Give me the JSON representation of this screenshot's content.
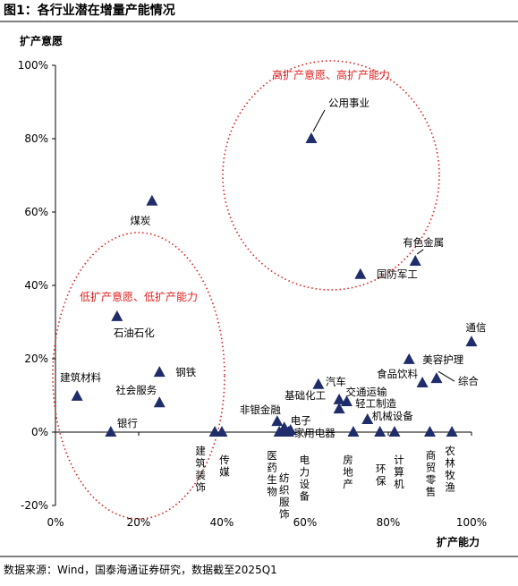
{
  "chart_data": {
    "type": "scatter",
    "title": "图1：各行业潜在增量产能情况",
    "y_label": "扩产意愿",
    "x_label": "扩产能力",
    "source": "数据来源：Wind，国泰海通证券研究，数据截至2025Q1",
    "annotations": [
      "高扩产意愿、高扩产能力",
      "低扩产意愿、低扩产能力"
    ],
    "annotation_color": "#e02020",
    "color": "#1f2d6b",
    "labels": [
      "公用事业",
      "煤炭",
      "有色金属",
      "国防军工",
      "石油石化",
      "通信",
      "美容护理",
      "钢铁",
      "汽车",
      "综合",
      "食品饮料",
      "建筑材料",
      "社会服务",
      "基础化工",
      "交通运输",
      "轻工制造",
      "机械设备",
      "非银金融",
      "电子",
      "银行",
      "建筑装饰",
      "传媒",
      "医药生物",
      "纺织服饰",
      "电力设备",
      "家用电器",
      "房地产",
      "环保",
      "计算机",
      "商贸零售",
      "农林牧渔"
    ],
    "x": [
      61.5,
      23.2,
      86.5,
      73.3,
      14.8,
      100,
      85,
      25,
      63.2,
      91.6,
      88.2,
      5.2,
      25,
      68.2,
      70,
      68.2,
      75,
      53.3,
      55,
      13.3,
      38.3,
      40,
      53.8,
      55,
      56,
      56.5,
      71.6,
      78,
      81.5,
      90,
      95.3
    ],
    "values": [
      80,
      63,
      46.6,
      43,
      31.5,
      24.6,
      19.8,
      16.3,
      13,
      14.6,
      13.4,
      9.8,
      8,
      8.8,
      8.3,
      6.3,
      3.4,
      2.9,
      1.2,
      0,
      0,
      0,
      0,
      0,
      0,
      0.5,
      0,
      0,
      0,
      0,
      0
    ],
    "xlim": [
      0,
      100
    ],
    "ylim": [
      -20,
      100
    ],
    "xticks": [
      {
        "value": 0,
        "label": "0%"
      },
      {
        "value": 20,
        "label": "20%"
      },
      {
        "value": 40,
        "label": "40%"
      },
      {
        "value": 60,
        "label": "60%"
      },
      {
        "value": 80,
        "label": "80%"
      },
      {
        "value": 100,
        "label": "100%"
      }
    ],
    "yticks": [
      {
        "value": -20,
        "label": "-20%"
      },
      {
        "value": 0,
        "label": "0%"
      },
      {
        "value": 20,
        "label": "20%"
      },
      {
        "value": 40,
        "label": "40%"
      },
      {
        "value": 60,
        "label": "60%"
      },
      {
        "value": 80,
        "label": "80%"
      },
      {
        "value": 100,
        "label": "100%"
      }
    ]
  }
}
